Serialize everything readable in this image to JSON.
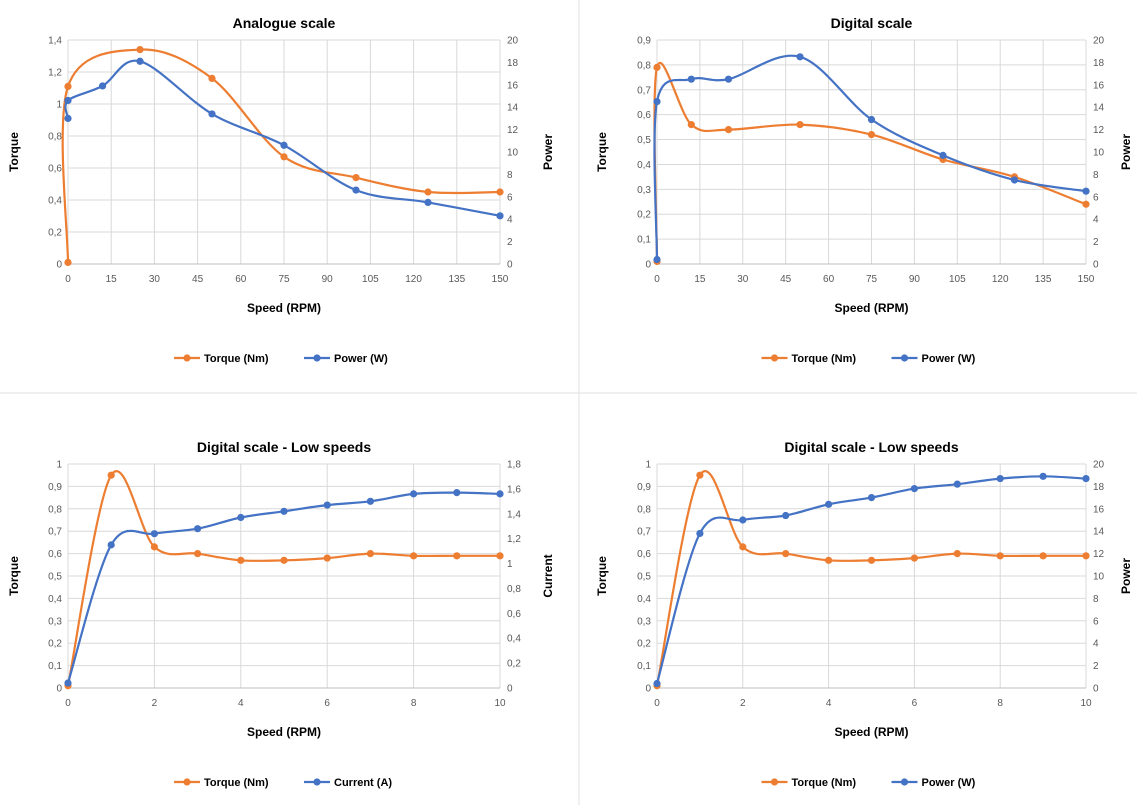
{
  "colors": {
    "orange": "#ED7D31",
    "blue": "#4472C4",
    "grid": "#D9D9D9",
    "divider": "#E0E0E0"
  },
  "chart_data": [
    {
      "type": "line",
      "title": "Analogue scale",
      "xlabel": "Speed  (RPM)",
      "ylabel": "Torque",
      "y2label": "Power",
      "xlim": [
        0,
        150
      ],
      "xticks": [
        "0",
        "15",
        "30",
        "45",
        "60",
        "75",
        "90",
        "105",
        "120",
        "135",
        "150"
      ],
      "ylim": [
        0,
        1.4
      ],
      "yticks": [
        "0",
        "0,2",
        "0,4",
        "0,6",
        "0,8",
        "1",
        "1,2",
        "1,4"
      ],
      "y2lim": [
        0,
        20
      ],
      "y2ticks": [
        "0",
        "2",
        "4",
        "6",
        "8",
        "10",
        "12",
        "14",
        "16",
        "18",
        "20"
      ],
      "grid": true,
      "legend": "bottom",
      "series": [
        {
          "name": "Torque (Nm)",
          "axis": "left",
          "color": "#ED7D31",
          "x": [
            0,
            0,
            25,
            50,
            75,
            100,
            125,
            150
          ],
          "y": [
            0.01,
            1.11,
            1.34,
            1.16,
            0.67,
            0.54,
            0.45,
            0.45
          ]
        },
        {
          "name": "Power (W)",
          "axis": "right",
          "color": "#4472C4",
          "x": [
            0,
            0,
            12,
            25,
            50,
            75,
            100,
            125,
            150
          ],
          "y": [
            13.0,
            14.6,
            15.9,
            18.1,
            13.4,
            10.6,
            6.6,
            5.5,
            4.3
          ]
        }
      ]
    },
    {
      "type": "line",
      "title": "Digital scale",
      "xlabel": "Speed  (RPM)",
      "ylabel": "Torque",
      "y2label": "Power",
      "xlim": [
        0,
        150
      ],
      "xticks": [
        "0",
        "15",
        "30",
        "45",
        "60",
        "75",
        "90",
        "105",
        "120",
        "135",
        "150"
      ],
      "ylim": [
        0,
        0.9
      ],
      "yticks": [
        "0",
        "0,1",
        "0,2",
        "0,3",
        "0,4",
        "0,5",
        "0,6",
        "0,7",
        "0,8",
        "0,9"
      ],
      "y2lim": [
        0,
        20
      ],
      "y2ticks": [
        "0",
        "2",
        "4",
        "6",
        "8",
        "10",
        "12",
        "14",
        "16",
        "18",
        "20"
      ],
      "grid": true,
      "legend": "bottom",
      "series": [
        {
          "name": "Torque (Nm)",
          "axis": "left",
          "color": "#ED7D31",
          "x": [
            0,
            0,
            12,
            25,
            50,
            75,
            100,
            125,
            150
          ],
          "y": [
            0.01,
            0.79,
            0.56,
            0.54,
            0.56,
            0.52,
            0.42,
            0.35,
            0.24
          ]
        },
        {
          "name": "Power (W)",
          "axis": "right",
          "color": "#4472C4",
          "x": [
            0,
            0,
            12,
            25,
            50,
            75,
            100,
            125,
            150
          ],
          "y": [
            0.4,
            14.5,
            16.5,
            16.5,
            18.5,
            12.9,
            9.7,
            7.5,
            6.5
          ]
        }
      ]
    },
    {
      "type": "line",
      "title": "Digital scale - Low speeds",
      "xlabel": "Speed  (RPM)",
      "ylabel": "Torque",
      "y2label": "Current",
      "xlim": [
        0,
        10
      ],
      "xticks": [
        "0",
        "2",
        "4",
        "6",
        "8",
        "10"
      ],
      "ylim": [
        0,
        1
      ],
      "yticks": [
        "0",
        "0,1",
        "0,2",
        "0,3",
        "0,4",
        "0,5",
        "0,6",
        "0,7",
        "0,8",
        "0,9",
        "1"
      ],
      "y2lim": [
        0,
        1.8
      ],
      "y2ticks": [
        "0",
        "0,2",
        "0,4",
        "0,6",
        "0,8",
        "1",
        "1,2",
        "1,4",
        "1,6",
        "1,8"
      ],
      "grid": true,
      "legend": "bottom",
      "series": [
        {
          "name": "Torque (Nm)",
          "axis": "left",
          "color": "#ED7D31",
          "x": [
            0,
            1,
            2,
            3,
            4,
            5,
            6,
            7,
            8,
            9,
            10
          ],
          "y": [
            0.01,
            0.95,
            0.63,
            0.6,
            0.57,
            0.57,
            0.58,
            0.6,
            0.59,
            0.59,
            0.59
          ]
        },
        {
          "name": "Current (A)",
          "axis": "right",
          "color": "#4472C4",
          "x": [
            0,
            1,
            2,
            3,
            4,
            5,
            6,
            7,
            8,
            9,
            10
          ],
          "y": [
            0.04,
            1.15,
            1.24,
            1.28,
            1.37,
            1.42,
            1.47,
            1.5,
            1.56,
            1.57,
            1.56
          ]
        }
      ]
    },
    {
      "type": "line",
      "title": "Digital scale - Low speeds",
      "xlabel": "Speed  (RPM)",
      "ylabel": "Torque",
      "y2label": "Power",
      "xlim": [
        0,
        10
      ],
      "xticks": [
        "0",
        "2",
        "4",
        "6",
        "8",
        "10"
      ],
      "ylim": [
        0,
        1
      ],
      "yticks": [
        "0",
        "0,1",
        "0,2",
        "0,3",
        "0,4",
        "0,5",
        "0,6",
        "0,7",
        "0,8",
        "0,9",
        "1"
      ],
      "y2lim": [
        0,
        20
      ],
      "y2ticks": [
        "0",
        "2",
        "4",
        "6",
        "8",
        "10",
        "12",
        "14",
        "16",
        "18",
        "20"
      ],
      "grid": true,
      "legend": "bottom",
      "series": [
        {
          "name": "Torque (Nm)",
          "axis": "left",
          "color": "#ED7D31",
          "x": [
            0,
            1,
            2,
            3,
            4,
            5,
            6,
            7,
            8,
            9,
            10
          ],
          "y": [
            0.01,
            0.95,
            0.63,
            0.6,
            0.57,
            0.57,
            0.58,
            0.6,
            0.59,
            0.59,
            0.59
          ]
        },
        {
          "name": "Power (W)",
          "axis": "right",
          "color": "#4472C4",
          "x": [
            0,
            1,
            2,
            3,
            4,
            5,
            6,
            7,
            8,
            9,
            10
          ],
          "y": [
            0.4,
            13.8,
            15.0,
            15.4,
            16.4,
            17.0,
            17.8,
            18.2,
            18.7,
            18.9,
            18.7
          ]
        }
      ]
    }
  ]
}
